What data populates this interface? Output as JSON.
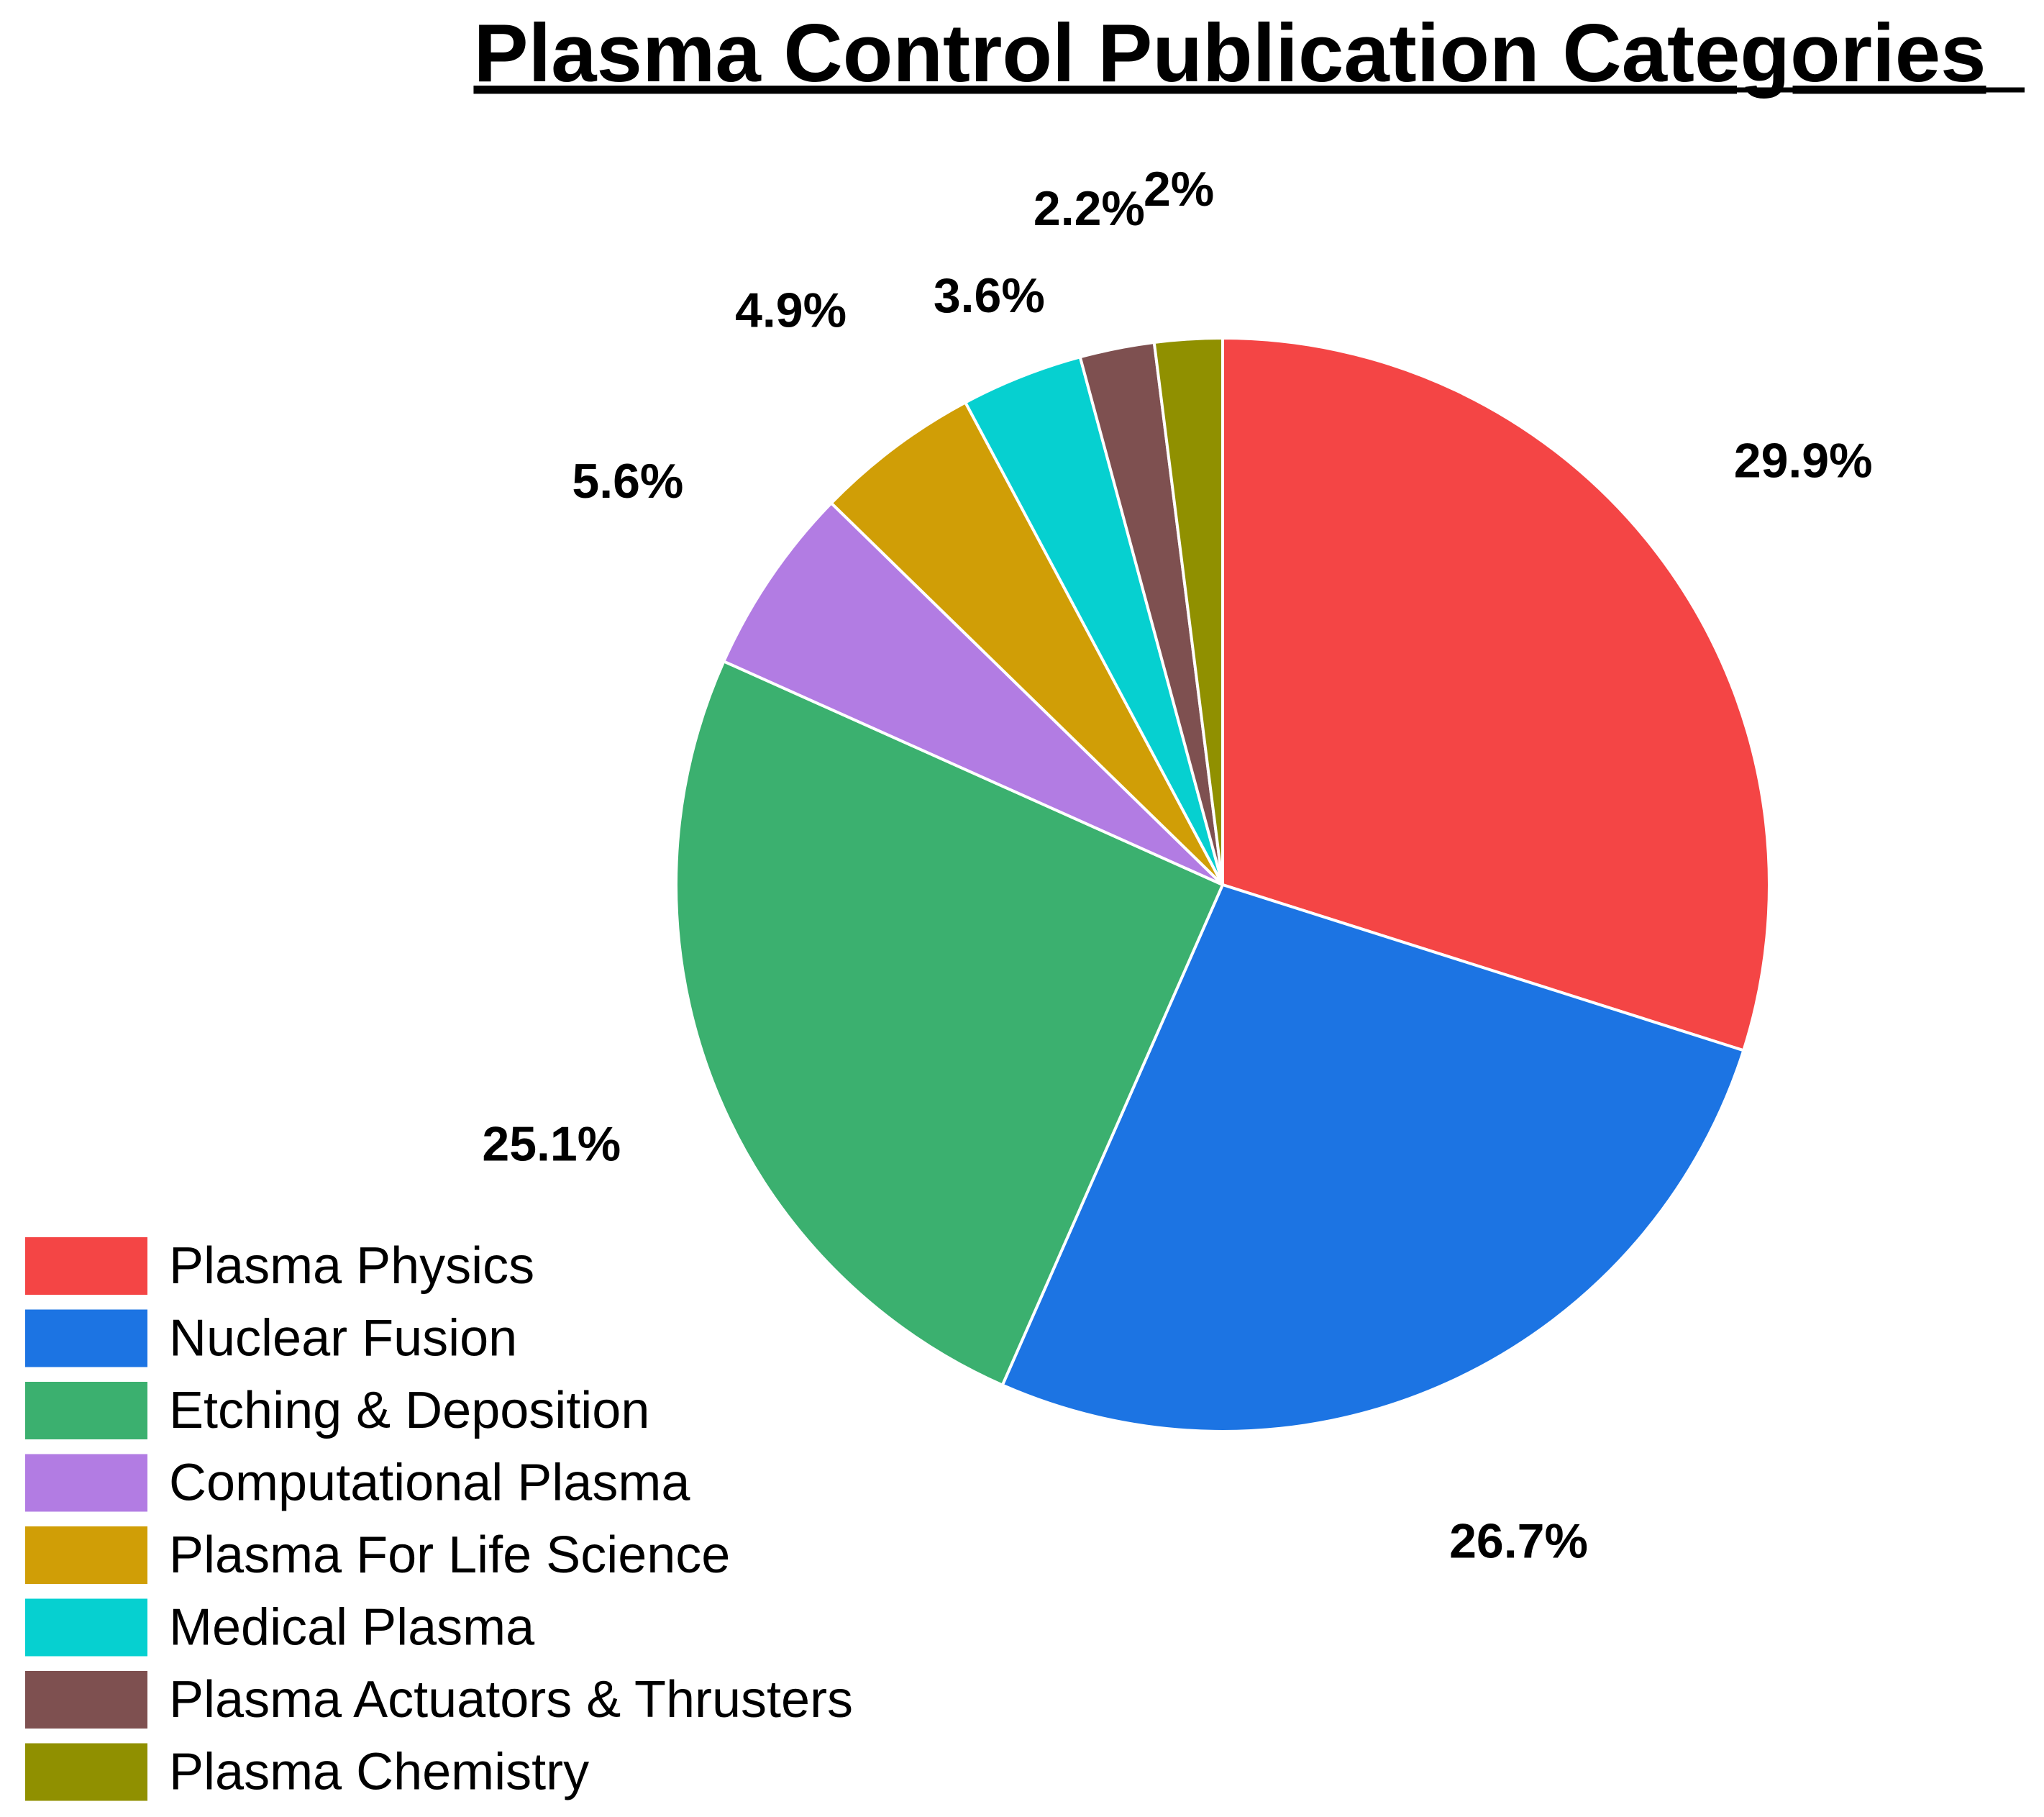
{
  "chart_data": {
    "type": "pie",
    "title": "Plasma Control Publication Categories",
    "slices": [
      {
        "label": "Plasma Physics",
        "value": 29.9,
        "display": "29.9%",
        "color": "#f44545"
      },
      {
        "label": "Nuclear Fusion",
        "value": 26.7,
        "display": "26.7%",
        "color": "#1c74e3"
      },
      {
        "label": "Etching & Deposition",
        "value": 25.1,
        "display": "25.1%",
        "color": "#3bb06f"
      },
      {
        "label": "Computational Plasma",
        "value": 5.6,
        "display": "5.6%",
        "color": "#b27ce3"
      },
      {
        "label": "Plasma For Life Science",
        "value": 4.9,
        "display": "4.9%",
        "color": "#d09e06"
      },
      {
        "label": "Medical Plasma",
        "value": 3.6,
        "display": "3.6%",
        "color": "#06d0d0"
      },
      {
        "label": "Plasma Actuators & Thrusters",
        "value": 2.2,
        "display": "2.2%",
        "color": "#7e5050"
      },
      {
        "label": "Plasma Chemistry",
        "value": 2.0,
        "display": "2%",
        "color": "#909000"
      }
    ],
    "start": "top",
    "direction": "clockwise",
    "legend_position": "bottom-left"
  }
}
